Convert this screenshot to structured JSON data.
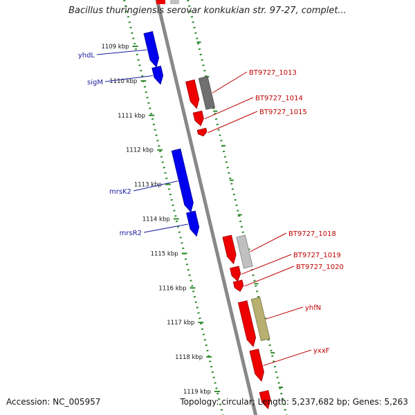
{
  "title": "Bacillus thuringiensis serovar konkukian str. 97-27, complet...",
  "footer": {
    "accession": "Accession: NC_005957",
    "summary": "Topology: circular; Length: 5,237,682 bp; Genes: 5,263"
  },
  "scale_labels": [
    "1109 kbp",
    "1110 kbp",
    "1111 kbp",
    "1112 kbp",
    "1113 kbp",
    "1114 kbp",
    "1115 kbp",
    "1116 kbp",
    "1117 kbp",
    "1118 kbp",
    "1119 kbp"
  ],
  "colors": {
    "minus_strand": "#0000ee",
    "plus_strand": "#ee0000",
    "other_feature_dark": "#707070",
    "other_feature_light": "#c0c0c0",
    "other_feature_olive": "#b8b070",
    "backbone": "#888888",
    "scale_dots": "#2e8b2e",
    "minus_label": "#1a1aa0",
    "plus_label": "#c00000"
  },
  "genes": [
    {
      "name": "yhdL",
      "strand": "minus",
      "start": 1108.6,
      "end": 1109.6
    },
    {
      "name": "sigM",
      "strand": "minus",
      "start": 1109.6,
      "end": 1110.1
    },
    {
      "name": "",
      "strand": "plus",
      "start": 1110.0,
      "end": 1110.8
    },
    {
      "name": "BT9727_1013",
      "strand": "other",
      "start": 1109.9,
      "end": 1110.8
    },
    {
      "name": "BT9727_1014",
      "strand": "plus",
      "start": 1110.9,
      "end": 1111.3
    },
    {
      "name": "BT9727_1015",
      "strand": "plus",
      "start": 1111.4,
      "end": 1111.6
    },
    {
      "name": "mrsK2",
      "strand": "minus",
      "start": 1112.0,
      "end": 1113.8
    },
    {
      "name": "mrsR2",
      "strand": "minus",
      "start": 1113.8,
      "end": 1114.5
    },
    {
      "name": "",
      "strand": "plus",
      "start": 1114.5,
      "end": 1115.3
    },
    {
      "name": "BT9727_1018",
      "strand": "light",
      "start": 1114.5,
      "end": 1115.4
    },
    {
      "name": "BT9727_1019",
      "strand": "plus",
      "start": 1115.4,
      "end": 1115.8
    },
    {
      "name": "BT9727_1020",
      "strand": "plus",
      "start": 1115.8,
      "end": 1116.1
    },
    {
      "name": "",
      "strand": "plus",
      "start": 1116.4,
      "end": 1117.7
    },
    {
      "name": "yhfN",
      "strand": "olive",
      "start": 1116.3,
      "end": 1117.5
    },
    {
      "name": "yxxF",
      "strand": "plus",
      "start": 1117.8,
      "end": 1118.7
    },
    {
      "name": "",
      "strand": "plus",
      "start": 1119.0,
      "end": 1119.5
    }
  ]
}
